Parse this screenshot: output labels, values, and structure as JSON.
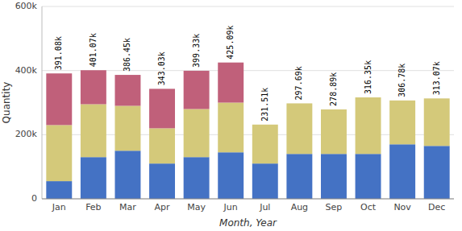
{
  "chart_data": {
    "type": "bar",
    "stacked": true,
    "categories": [
      "Jan",
      "Feb",
      "Mar",
      "Apr",
      "May",
      "Jun",
      "Jul",
      "Aug",
      "Sep",
      "Oct",
      "Nov",
      "Dec"
    ],
    "series": [
      {
        "color": "#4472C4",
        "values": [
          55000,
          130000,
          150000,
          110000,
          130000,
          145000,
          110000,
          140000,
          140000,
          140000,
          170000,
          165000
        ]
      },
      {
        "color": "#D4C97A",
        "values": [
          175000,
          165000,
          140000,
          110000,
          150000,
          155000,
          121510,
          157690,
          138890,
          176350,
          136780,
          148070
        ]
      },
      {
        "color": "#C0607A",
        "values": [
          161080,
          106070,
          96450,
          123030,
          119330,
          125090,
          0,
          0,
          0,
          0,
          0,
          0
        ]
      }
    ],
    "totals": [
      391080,
      401070,
      386450,
      343030,
      399330,
      425090,
      231510,
      297690,
      278890,
      316350,
      306780,
      313070
    ],
    "total_labels": [
      "391.08k",
      "401.07k",
      "386.45k",
      "343.03k",
      "399.33k",
      "425.09k",
      "231.51k",
      "297.69k",
      "278.89k",
      "316.35k",
      "306.78k",
      "313.07k"
    ],
    "xlabel": "Month, Year",
    "ylabel": "Quantity",
    "ylim": [
      0,
      600000
    ],
    "yticks": [
      0,
      {
        "value": 200000,
        "label": "200k"
      },
      {
        "value": 400000,
        "label": "400k"
      },
      {
        "value": 600000,
        "label": "600k"
      }
    ],
    "grid": true
  }
}
